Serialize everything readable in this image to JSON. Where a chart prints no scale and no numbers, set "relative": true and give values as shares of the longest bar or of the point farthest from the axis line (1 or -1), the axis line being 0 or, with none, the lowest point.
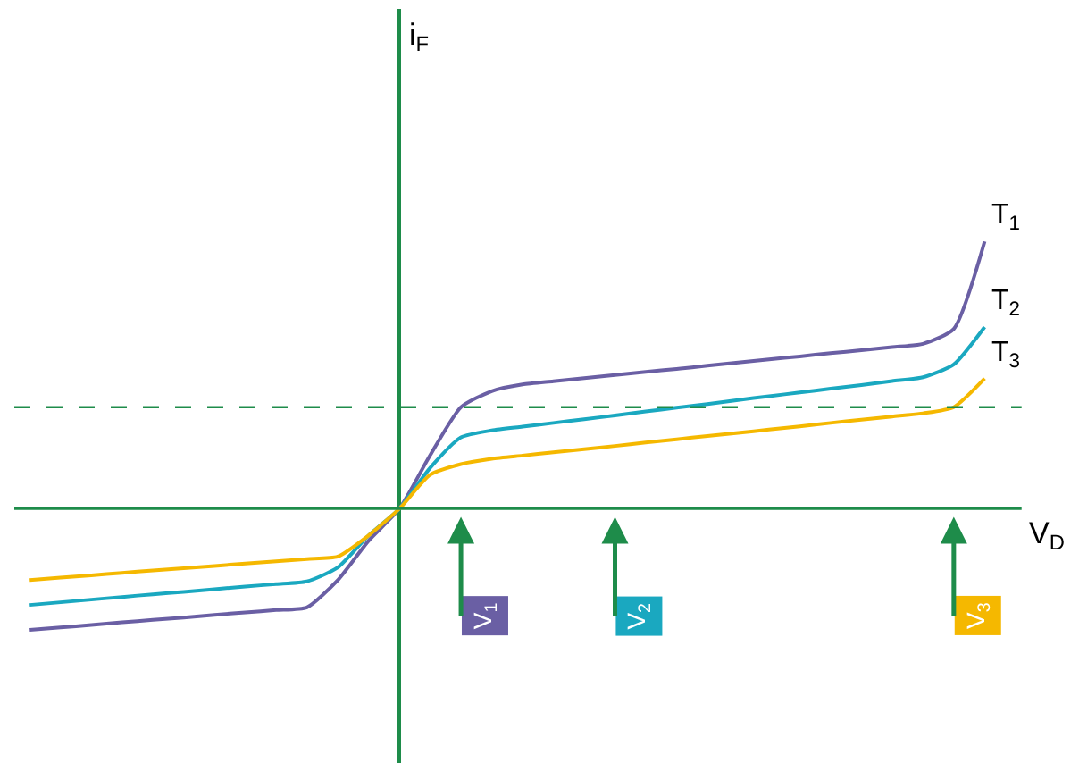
{
  "chart_data": {
    "type": "line",
    "relative": true,
    "xlabel": "V$_{D}$",
    "categories": [
      null,
      null,
      null,
      null,
      null,
      null,
      null,
      null,
      null,
      null,
      null,
      null,
      null,
      null,
      null,
      null,
      null,
      null,
      null,
      null,
      null,
      null,
      null,
      null,
      null,
      null,
      null,
      null,
      null,
      null,
      null,
      null
    ],
    "series": [
      {
        "name": "T$_{1}$",
        "color": "#6a5fa4",
        "values": [
          -0.453,
          -0.444,
          -0.435,
          -0.425,
          -0.416,
          -0.407,
          -0.397,
          -0.388,
          -0.379,
          -0.369,
          -0.267,
          -0.12,
          0,
          0.2,
          0.38,
          0.44,
          0.465,
          0.477,
          0.489,
          0.5,
          0.512,
          0.523,
          0.535,
          0.547,
          0.559,
          0.57,
          0.582,
          0.593,
          0.605,
          0.617,
          0.673,
          1
        ]
      },
      {
        "name": "T$_{2}$",
        "color": "#1aa8c0",
        "values": [
          -0.36,
          -0.35,
          -0.34,
          -0.33,
          -0.32,
          -0.311,
          -0.301,
          -0.291,
          -0.282,
          -0.272,
          -0.22,
          -0.1,
          0,
          0.153,
          0.267,
          0.293,
          0.307,
          0.321,
          0.335,
          0.349,
          0.364,
          0.378,
          0.392,
          0.407,
          0.421,
          0.435,
          0.449,
          0.463,
          0.478,
          0.492,
          0.54,
          0.68
        ]
      },
      {
        "name": "T$_{3}$",
        "color": "#f5b800",
        "values": [
          -0.267,
          -0.258,
          -0.249,
          -0.24,
          -0.231,
          -0.223,
          -0.214,
          -0.205,
          -0.197,
          -0.188,
          -0.179,
          -0.1,
          0,
          0.127,
          0.167,
          0.187,
          0.199,
          0.211,
          0.223,
          0.235,
          0.248,
          0.26,
          0.272,
          0.284,
          0.296,
          0.308,
          0.321,
          0.333,
          0.345,
          0.357,
          0.38,
          0.487
        ]
      }
    ],
    "ref_lines": [
      {
        "axis": "y",
        "value": 0.38,
        "color": "#1e8c4a",
        "line_style": "dashed"
      },
      {
        "axis": "y",
        "value": 0,
        "color": "#1e8c4a",
        "line_style": "solid"
      }
    ],
    "annotations": [
      "i$_{F}$",
      "V$_{1}$",
      "V$_{2}$",
      "V$_{3}$"
    ],
    "line_style": "solid",
    "legend": false,
    "grid": false,
    "tick_labels": false
  }
}
